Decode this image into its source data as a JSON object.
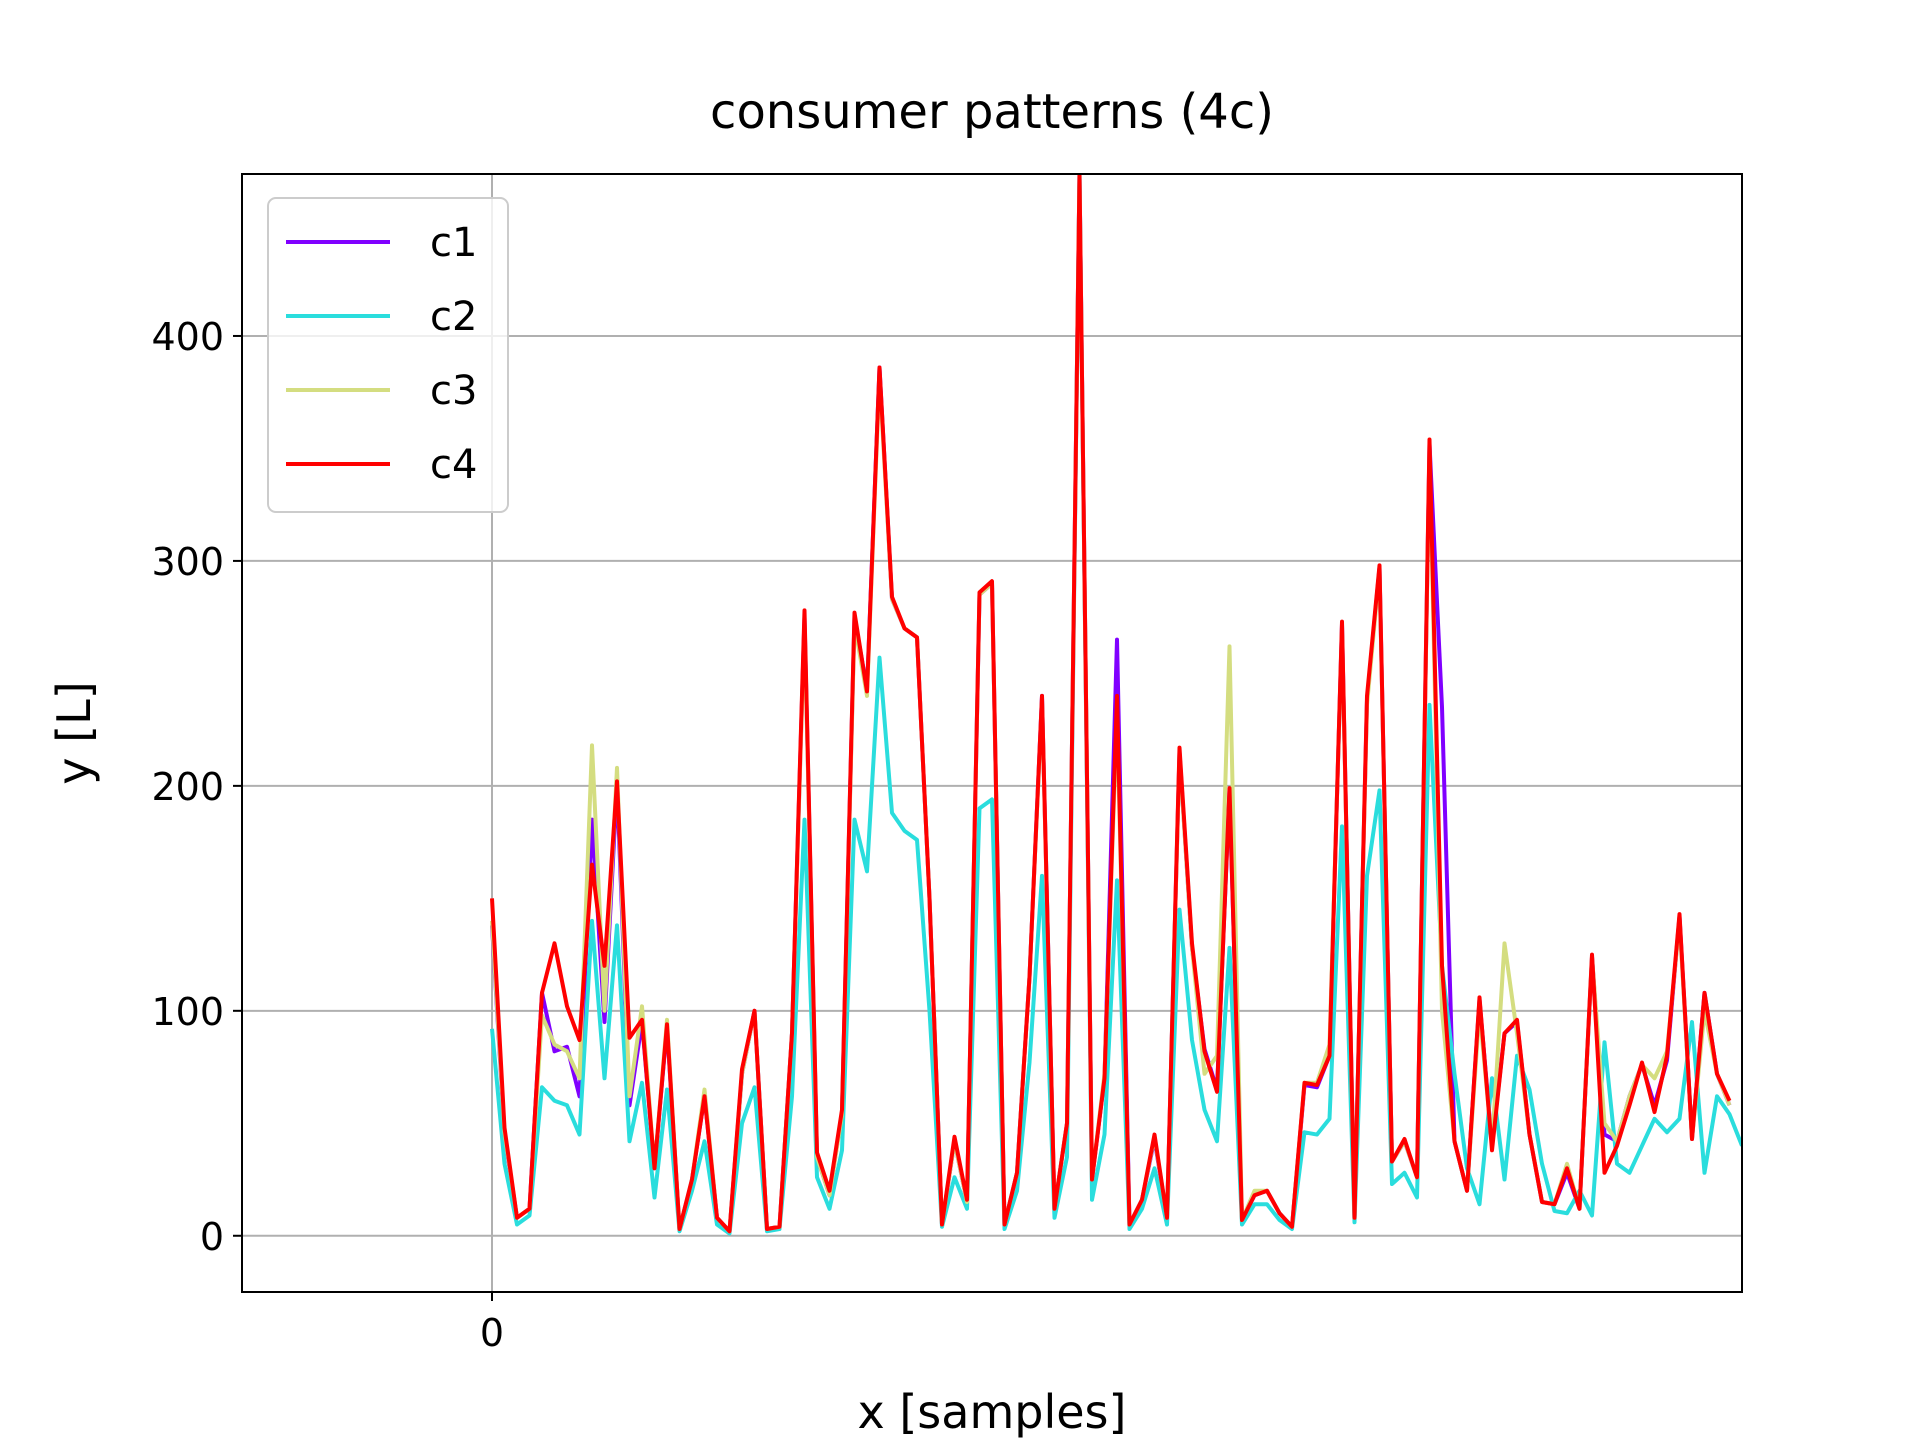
{
  "chart_data": {
    "type": "line",
    "title": "consumer patterns (4c)",
    "xlabel": "x [samples]",
    "ylabel": "y [L]",
    "xlim": [
      -20,
      100
    ],
    "ylim": [
      -25,
      472
    ],
    "xticks": [
      0
    ],
    "yticks": [
      0,
      100,
      200,
      300,
      400
    ],
    "grid": true,
    "legend_position": "upper-left",
    "colors": {
      "c1": "#8000ff",
      "c2": "#2adddd",
      "c3": "#d4dd80",
      "c4": "#ff0000"
    },
    "series": [
      {
        "name": "c1",
        "values": [
          138,
          45,
          8,
          12,
          108,
          82,
          84,
          62,
          185,
          95,
          201,
          58,
          95,
          30,
          93,
          3,
          25,
          62,
          8,
          2,
          72,
          100,
          3,
          4,
          90,
          275,
          35,
          18,
          55,
          275,
          243,
          386,
          283,
          270,
          266,
          150,
          5,
          42,
          15,
          285,
          290,
          5,
          28,
          115,
          240,
          12,
          50,
          472,
          25,
          70,
          265,
          5,
          16,
          43,
          8,
          215,
          128,
          83,
          65,
          198,
          7,
          18,
          20,
          10,
          4,
          67,
          66,
          80,
          272,
          8,
          238,
          297,
          33,
          42,
          26,
          352,
          235,
          42,
          20,
          105,
          40,
          90,
          95,
          45,
          15,
          14,
          28,
          12,
          124,
          45,
          42,
          62,
          76,
          58,
          78,
          142,
          43,
          108,
          72,
          58
        ]
      },
      {
        "name": "c2",
        "values": [
          92,
          32,
          5,
          9,
          66,
          60,
          58,
          45,
          140,
          70,
          138,
          42,
          68,
          17,
          65,
          2,
          20,
          42,
          5,
          1,
          50,
          66,
          2,
          3,
          62,
          185,
          26,
          12,
          38,
          185,
          162,
          257,
          188,
          180,
          176,
          100,
          4,
          26,
          12,
          190,
          194,
          3,
          20,
          77,
          160,
          8,
          35,
          472,
          16,
          45,
          158,
          3,
          12,
          30,
          5,
          145,
          87,
          56,
          42,
          128,
          5,
          14,
          14,
          7,
          3,
          46,
          45,
          52,
          182,
          6,
          160,
          198,
          23,
          28,
          17,
          236,
          120,
          72,
          30,
          14,
          70,
          25,
          80,
          65,
          32,
          11,
          10,
          20,
          9,
          86,
          32,
          28,
          40,
          52,
          46,
          52,
          95,
          28,
          62,
          54,
          40
        ]
      },
      {
        "name": "c3",
        "values": [
          140,
          46,
          8,
          12,
          98,
          85,
          82,
          70,
          218,
          100,
          208,
          62,
          102,
          30,
          96,
          3,
          25,
          65,
          8,
          2,
          72,
          100,
          3,
          4,
          90,
          272,
          35,
          18,
          54,
          272,
          240,
          382,
          283,
          270,
          266,
          150,
          5,
          42,
          15,
          285,
          290,
          5,
          28,
          115,
          238,
          12,
          50,
          472,
          25,
          72,
          232,
          5,
          16,
          44,
          8,
          214,
          128,
          72,
          80,
          262,
          7,
          20,
          20,
          10,
          4,
          68,
          68,
          85,
          270,
          8,
          236,
          296,
          33,
          42,
          26,
          350,
          100,
          42,
          20,
          100,
          40,
          130,
          90,
          45,
          15,
          14,
          32,
          12,
          124,
          50,
          42,
          62,
          76,
          70,
          82,
          140,
          43,
          100,
          72,
          58
        ]
      },
      {
        "name": "c4",
        "values": [
          150,
          48,
          8,
          12,
          108,
          130,
          102,
          87,
          165,
          120,
          202,
          88,
          96,
          30,
          94,
          3,
          25,
          62,
          8,
          2,
          74,
          100,
          3,
          4,
          90,
          278,
          37,
          20,
          56,
          277,
          242,
          386,
          284,
          270,
          266,
          150,
          5,
          44,
          16,
          286,
          291,
          5,
          28,
          115,
          240,
          12,
          50,
          472,
          25,
          70,
          240,
          5,
          16,
          45,
          8,
          217,
          130,
          82,
          64,
          199,
          7,
          18,
          20,
          10,
          4,
          68,
          67,
          80,
          273,
          8,
          240,
          298,
          33,
          43,
          26,
          354,
          120,
          42,
          20,
          106,
          38,
          90,
          96,
          45,
          15,
          14,
          30,
          12,
          125,
          28,
          40,
          58,
          77,
          55,
          80,
          143,
          43,
          108,
          72,
          60
        ]
      }
    ]
  }
}
